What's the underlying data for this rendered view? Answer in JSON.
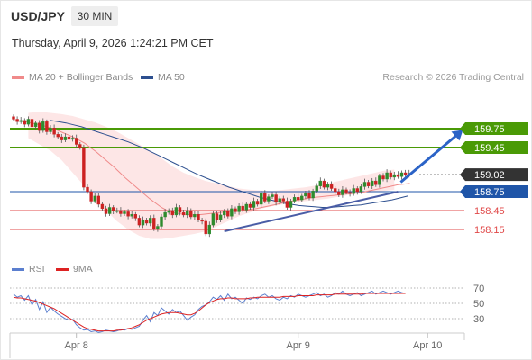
{
  "header": {
    "symbol": "USD/JPY",
    "interval": "30 MIN",
    "datetime": "Thursday, April 9, 2026 1:24:21 PM CET"
  },
  "legend": {
    "ma20": "MA 20 + Bollinger Bands",
    "ma50": "MA 50",
    "credit": "Research © 2026 Trading Central",
    "rsi": "RSI",
    "ma9": "9MA"
  },
  "colors": {
    "bullish": "#2e8b2e",
    "bearish": "#cc2222",
    "ma20": "#f08a8a",
    "ma50": "#2d4f8f",
    "band_fill": "#fde3e3",
    "resistance": "#4a9a06",
    "support": "#e04848",
    "current": "#333333",
    "pivot": "#1f55a8",
    "trendline": "#4a5da6",
    "rsi": "#5b7fcf",
    "rsi_ma": "#dd2222"
  },
  "chart_data": {
    "type": "candlestick",
    "x_labels": [
      "Apr 8",
      "Apr 9",
      "Apr 10"
    ],
    "x_label_index": [
      17,
      77,
      112
    ],
    "y_range": [
      157.9,
      160.05
    ],
    "levels": [
      {
        "price": 159.75,
        "label": "159.75",
        "kind": "resistance"
      },
      {
        "price": 159.45,
        "label": "159.45",
        "kind": "resistance"
      },
      {
        "price": 159.02,
        "label": "159.02",
        "kind": "current"
      },
      {
        "price": 158.75,
        "label": "158.75",
        "kind": "pivot"
      },
      {
        "price": 158.45,
        "label": "158.45",
        "kind": "support"
      },
      {
        "price": 158.15,
        "label": "158.15",
        "kind": "support"
      }
    ],
    "candles_close": [
      159.9,
      159.86,
      159.88,
      159.82,
      159.9,
      159.78,
      159.84,
      159.72,
      159.86,
      159.7,
      159.76,
      159.66,
      159.62,
      159.57,
      159.62,
      159.58,
      159.6,
      159.5,
      159.45,
      158.82,
      158.75,
      158.6,
      158.68,
      158.55,
      158.48,
      158.4,
      158.5,
      158.44,
      158.45,
      158.4,
      158.43,
      158.36,
      158.39,
      158.33,
      158.22,
      158.3,
      158.25,
      158.33,
      158.16,
      158.2,
      158.35,
      158.42,
      158.45,
      158.38,
      158.5,
      158.42,
      158.38,
      158.45,
      158.35,
      158.39,
      158.3,
      158.28,
      158.08,
      158.22,
      158.4,
      158.3,
      158.38,
      158.44,
      158.36,
      158.48,
      158.43,
      158.52,
      158.46,
      158.55,
      158.5,
      158.6,
      158.55,
      158.72,
      158.6,
      158.67,
      158.7,
      158.58,
      158.64,
      158.6,
      158.5,
      158.6,
      158.66,
      158.62,
      158.68,
      158.72,
      158.65,
      158.76,
      158.84,
      158.92,
      158.82,
      158.86,
      158.8,
      158.75,
      158.7,
      158.78,
      158.74,
      158.72,
      158.8,
      158.75,
      158.83,
      158.9,
      158.84,
      158.92,
      158.86,
      159.0,
      158.95,
      159.05,
      158.98,
      159.02,
      158.99,
      159.05,
      159.02,
      159.04
    ],
    "ma20": [
      159.88,
      159.87,
      159.86,
      159.84,
      159.82,
      159.8,
      159.77,
      159.74,
      159.7,
      159.66,
      159.62,
      159.57,
      159.52,
      159.45,
      159.38,
      159.3,
      159.22,
      159.14,
      159.05,
      158.96,
      158.88,
      158.8,
      158.72,
      158.64,
      158.57,
      158.5,
      158.45,
      158.42,
      158.4,
      158.39,
      158.38,
      158.38,
      158.39,
      158.4,
      158.41,
      158.42,
      158.43,
      158.44,
      158.45,
      158.46,
      158.47,
      158.48,
      158.5,
      158.52,
      158.54,
      158.56,
      158.58,
      158.6,
      158.62,
      158.63,
      158.65,
      158.66,
      158.67,
      158.68,
      158.69,
      158.7,
      158.71,
      158.72,
      158.73,
      158.74,
      158.76,
      158.78,
      158.8,
      158.82,
      158.84,
      158.86,
      158.87,
      158.88
    ],
    "ma20_start": 40,
    "ma50": [
      159.88,
      159.86,
      159.84,
      159.81,
      159.78,
      159.74,
      159.7,
      159.66,
      159.62,
      159.58,
      159.54,
      159.49,
      159.44,
      159.38,
      159.32,
      159.26,
      159.2,
      159.14,
      159.08,
      159.02,
      158.97,
      158.92,
      158.87,
      158.82,
      158.78,
      158.74,
      158.7,
      158.66,
      158.63,
      158.6,
      158.57,
      158.55,
      158.53,
      158.52,
      158.51,
      158.5,
      158.5,
      158.51,
      158.52,
      158.53,
      158.54,
      158.56,
      158.58,
      158.6,
      158.62,
      158.65,
      158.68
    ],
    "ma50_start": 10,
    "band_upper": [
      160.0,
      160.02,
      160.0,
      159.98,
      159.95,
      159.9,
      159.85,
      159.78,
      159.7,
      159.6,
      159.5,
      159.4,
      159.28,
      159.15,
      159.05,
      158.98,
      158.92,
      158.88,
      158.84,
      158.8,
      158.78,
      158.77,
      158.76,
      158.78,
      158.8,
      158.82,
      158.85,
      158.88,
      158.92,
      158.96,
      159.0,
      159.04,
      159.08,
      159.1
    ],
    "band_lower": [
      159.6,
      159.5,
      159.4,
      159.25,
      159.05,
      158.85,
      158.65,
      158.45,
      158.28,
      158.15,
      158.05,
      158.0,
      158.0,
      158.02,
      158.05,
      158.08,
      158.12,
      158.2,
      158.28,
      158.36,
      158.42,
      158.48,
      158.52,
      158.55,
      158.58,
      158.6,
      158.62,
      158.64,
      158.67,
      158.7,
      158.72,
      158.74,
      158.76,
      158.78
    ],
    "band_start": 4,
    "band_step": 3,
    "trendline": [
      [
        57,
        158.12
      ],
      [
        104,
        158.75
      ]
    ],
    "arrow": [
      [
        104,
        158.9
      ],
      [
        115,
        159.73
      ]
    ],
    "rsi_levels": [
      70,
      50,
      30
    ],
    "rsi": [
      62,
      58,
      60,
      54,
      60,
      48,
      55,
      42,
      52,
      38,
      45,
      40,
      36,
      33,
      30,
      28,
      29,
      22,
      18,
      15,
      16,
      13,
      14,
      12,
      13,
      15,
      14,
      13,
      14,
      16,
      15,
      17,
      16,
      18,
      20,
      28,
      34,
      26,
      38,
      34,
      44,
      40,
      36,
      42,
      38,
      40,
      34,
      28,
      32,
      35,
      42,
      46,
      48,
      52,
      58,
      55,
      60,
      54,
      62,
      56,
      58,
      54,
      50,
      57,
      55,
      58,
      56,
      60,
      62,
      58,
      60,
      56,
      54,
      58,
      56,
      60,
      58,
      62,
      60,
      58,
      60,
      62,
      64,
      60,
      62,
      58,
      60,
      64,
      62,
      66,
      62,
      60,
      62,
      64,
      60,
      62,
      64,
      66,
      62,
      64,
      66,
      64,
      62,
      64,
      66,
      64,
      63
    ],
    "rsi_ma": [
      58,
      57,
      57,
      56,
      55,
      54,
      53,
      51,
      49,
      47,
      45,
      43,
      40,
      37,
      34,
      31,
      28,
      25,
      22,
      19,
      17,
      16,
      15,
      14,
      14,
      14,
      14,
      14,
      15,
      15,
      16,
      17,
      18,
      20,
      22,
      25,
      28,
      30,
      32,
      34,
      36,
      37,
      38,
      38,
      38,
      37,
      36,
      35,
      35,
      37,
      40,
      44,
      48,
      51,
      53,
      55,
      56,
      56,
      57,
      57,
      56,
      56,
      56,
      56,
      57,
      57,
      58,
      58,
      58,
      58,
      58,
      58,
      58,
      59,
      59,
      59,
      59,
      60,
      60,
      60,
      60,
      60,
      61,
      61,
      61,
      61,
      61,
      62,
      62,
      62,
      62,
      62,
      62,
      62,
      62,
      63,
      63,
      63,
      63,
      63,
      63,
      63,
      63,
      63,
      63,
      63,
      63
    ]
  }
}
